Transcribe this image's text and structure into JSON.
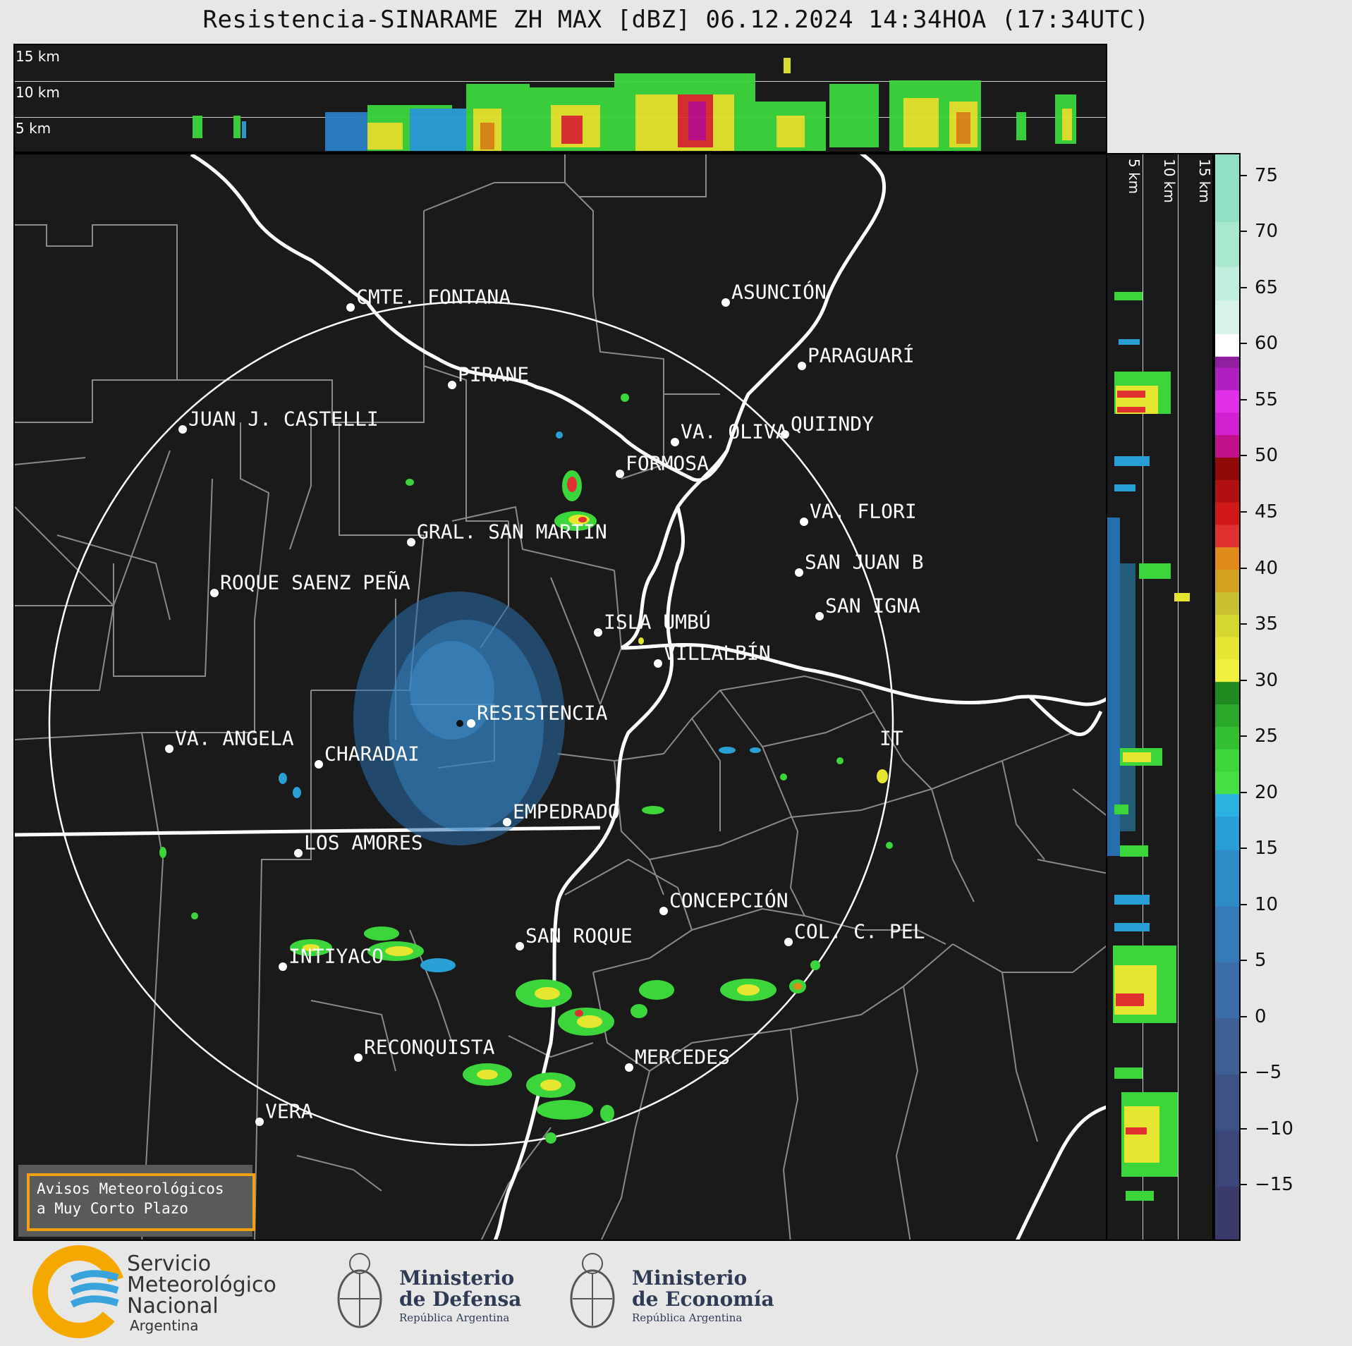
{
  "title": "Resistencia-SINARAME ZH MAX [dBZ] 06.12.2024 14:34HOA (17:34UTC)",
  "top_section": {
    "altitude_labels": [
      "15 km",
      "10 km",
      "5 km"
    ]
  },
  "side_section": {
    "altitude_labels": [
      "5 km",
      "10 km",
      "15 km"
    ]
  },
  "map": {
    "radar_site": "RESISTENCIA",
    "cities": [
      "CMTE. FONTANA",
      "ASUNCIÓN",
      "PARAGUARÍ",
      "PIRANE",
      "JUAN J. CASTELLI",
      "VA. OLIVA",
      "QUIINDY",
      "FORMOSA",
      "VA. FLORI",
      "GRAL. SAN MARTIN",
      "SAN JUAN B",
      "ROQUE SAENZ PEÑA",
      "SAN IGNA",
      "ISLA UMBÚ",
      "VILLALBÍN",
      "RESISTENCIA",
      "VA. ANGELA",
      "CHARADAI",
      "IT",
      "EMPEDRADO",
      "LOS AMORES",
      "CONCEPCIÓN",
      "SAN ROQUE",
      "COL. C. PEL",
      "INTIYACO",
      "RECONQUISTA",
      "MERCEDES",
      "VERA"
    ]
  },
  "colorbar": {
    "unit": "dBZ",
    "range": [
      -20,
      77
    ],
    "ticks": [
      "75",
      "70",
      "65",
      "60",
      "55",
      "50",
      "45",
      "40",
      "35",
      "30",
      "25",
      "20",
      "15",
      "10",
      "5",
      "0",
      "−5",
      "−10",
      "−15"
    ],
    "tick_values": [
      75,
      70,
      65,
      60,
      55,
      50,
      45,
      40,
      35,
      30,
      25,
      20,
      15,
      10,
      5,
      0,
      -5,
      -10,
      -15
    ]
  },
  "avisos": {
    "line1": "Avisos Meteorológicos",
    "line2": "a Muy Corto Plazo"
  },
  "logos": {
    "smn": {
      "line1": "Servicio",
      "line2": "Meteorológico",
      "line3": "Nacional",
      "line4": "Argentina"
    },
    "defensa": {
      "line1": "Ministerio",
      "line2": "de Defensa",
      "line3": "República Argentina"
    },
    "economia": {
      "line1": "Ministerio",
      "line2": "de Economía",
      "line3": "República Argentina"
    }
  },
  "colors": {
    "panel_bg": "#1a1a1a",
    "page_bg": "#e7e7e7",
    "accent_orange": "#f0a010",
    "smn_orange": "#f5a800",
    "smn_blue": "#3aa3dc"
  }
}
